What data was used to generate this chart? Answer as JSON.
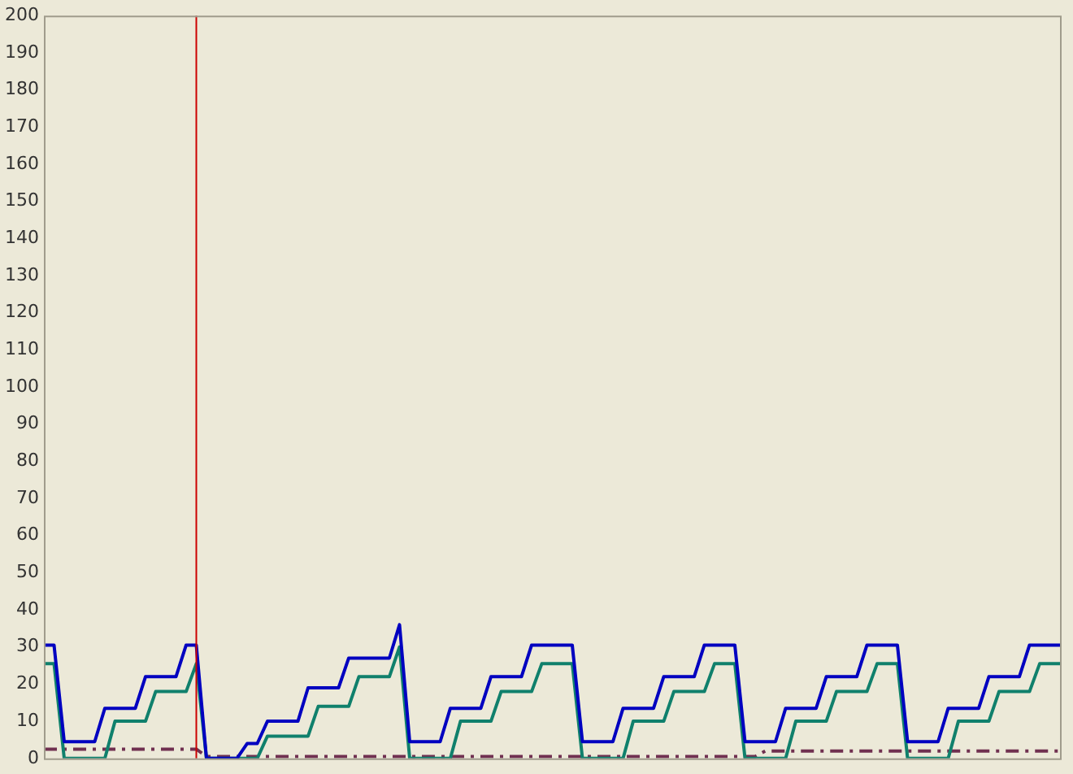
{
  "chart_data": {
    "type": "line",
    "ylim": [
      0,
      200
    ],
    "yticks": [
      0,
      10,
      20,
      30,
      40,
      50,
      60,
      70,
      80,
      90,
      100,
      110,
      120,
      130,
      140,
      150,
      160,
      170,
      180,
      190,
      200
    ],
    "grid": false,
    "legend": false,
    "tick_labels": "y",
    "marker": "none",
    "categories": [
      null,
      null,
      null,
      null,
      null,
      null,
      null,
      null,
      null,
      null,
      null,
      null,
      null,
      null,
      null,
      null,
      null,
      null,
      null,
      null,
      null,
      null,
      null,
      null,
      null,
      null,
      null,
      null,
      null,
      null,
      null,
      null,
      null,
      null,
      null,
      null,
      null,
      null,
      null,
      null,
      null,
      null,
      null,
      null,
      null,
      null,
      null,
      null,
      null,
      null,
      null,
      null,
      null,
      null,
      null,
      null,
      null,
      null,
      null,
      null,
      null,
      null,
      null,
      null,
      null,
      null,
      null,
      null,
      null,
      null,
      null,
      null,
      null,
      null,
      null,
      null,
      null,
      null,
      null,
      null,
      null,
      null,
      null,
      null,
      null,
      null,
      null,
      null,
      null,
      null,
      null,
      null,
      null,
      null,
      null,
      null,
      null,
      null,
      null,
      null,
      null
    ],
    "series": [
      {
        "color": "#0000c0",
        "line_style": "solid",
        "values": [
          30.5,
          30.5,
          4.5,
          4.5,
          4.5,
          4.5,
          13.5,
          13.5,
          13.5,
          13.5,
          22,
          22,
          22,
          22,
          30.5,
          30.5,
          0,
          0,
          0,
          0,
          4,
          4,
          10,
          10,
          10,
          10,
          19,
          19,
          19,
          19,
          27,
          27,
          27,
          27,
          27,
          36,
          4.5,
          4.5,
          4.5,
          4.5,
          13.5,
          13.5,
          13.5,
          13.5,
          22,
          22,
          22,
          22,
          30.5,
          30.5,
          30.5,
          30.5,
          30.5,
          4.5,
          4.5,
          4.5,
          4.5,
          13.5,
          13.5,
          13.5,
          13.5,
          22,
          22,
          22,
          22,
          30.5,
          30.5,
          30.5,
          30.5,
          4.5,
          4.5,
          4.5,
          4.5,
          13.5,
          13.5,
          13.5,
          13.5,
          22,
          22,
          22,
          22,
          30.5,
          30.5,
          30.5,
          30.5,
          4.5,
          4.5,
          4.5,
          4.5,
          13.5,
          13.5,
          13.5,
          13.5,
          22,
          22,
          22,
          22,
          30.5,
          30.5,
          30.5,
          30.5
        ]
      },
      {
        "color": "#10806c",
        "line_style": "solid",
        "values": [
          25.5,
          25.5,
          0,
          0,
          0,
          0,
          0,
          10,
          10,
          10,
          10,
          18,
          18,
          18,
          18,
          25.5,
          0,
          0,
          0,
          0,
          0,
          0,
          6,
          6,
          6,
          6,
          6,
          14,
          14,
          14,
          14,
          22,
          22,
          22,
          22,
          30,
          0,
          0,
          0,
          0,
          0,
          10,
          10,
          10,
          10,
          18,
          18,
          18,
          18,
          25.5,
          25.5,
          25.5,
          25.5,
          0,
          0,
          0,
          0,
          0,
          10,
          10,
          10,
          10,
          18,
          18,
          18,
          18,
          25.5,
          25.5,
          25.5,
          0,
          0,
          0,
          0,
          0,
          10,
          10,
          10,
          10,
          18,
          18,
          18,
          18,
          25.5,
          25.5,
          25.5,
          0,
          0,
          0,
          0,
          0,
          10,
          10,
          10,
          10,
          18,
          18,
          18,
          18,
          25.5,
          25.5,
          25.5
        ]
      },
      {
        "color": "#703050",
        "line_style": "dashed",
        "values": [
          2.5,
          2.5,
          2.5,
          2.5,
          2.5,
          2.5,
          2.5,
          2.5,
          2.5,
          2.5,
          2.5,
          2.5,
          2.5,
          2.5,
          2.5,
          2.5,
          0.5,
          0.5,
          0.5,
          0.5,
          0.5,
          0.5,
          0.5,
          0.5,
          0.5,
          0.5,
          0.5,
          0.5,
          0.5,
          0.5,
          0.5,
          0.5,
          0.5,
          0.5,
          0.5,
          0.5,
          0.5,
          0.5,
          0.5,
          0.5,
          0.5,
          0.5,
          0.5,
          0.5,
          0.5,
          0.5,
          0.5,
          0.5,
          0.5,
          0.5,
          0.5,
          0.5,
          0.5,
          0.5,
          0.5,
          0.5,
          0.5,
          0.5,
          0.5,
          0.5,
          0.5,
          0.5,
          0.5,
          0.5,
          0.5,
          0.5,
          0.5,
          0.5,
          0.5,
          0.5,
          0.5,
          2,
          2,
          2,
          2,
          2,
          2,
          2,
          2,
          2,
          2,
          2,
          2,
          2,
          2,
          2,
          2,
          2,
          2,
          2,
          2,
          2,
          2,
          2,
          2,
          2,
          2,
          2,
          2,
          2,
          2
        ]
      }
    ]
  }
}
